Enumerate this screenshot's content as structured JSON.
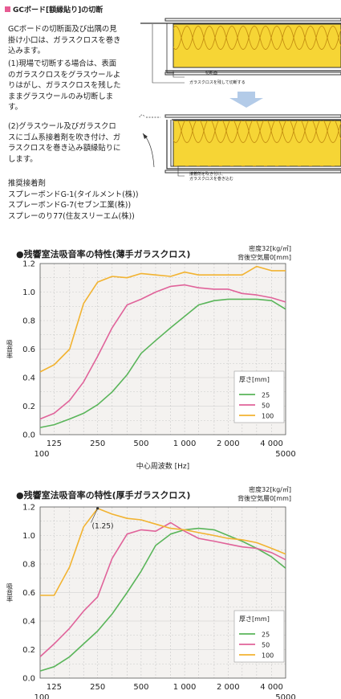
{
  "section": {
    "title": "GCボード[額縁貼り]の切断",
    "paragraph1": [
      "GCボードの切断面及び出隅の見",
      "掛け小口は、ガラスクロスを巻き",
      "込みます。"
    ],
    "paragraph2": [
      "(1)現場で切断する場合は、表面",
      "のガラスクロスをグラスウールよ",
      "りはがし、ガラスクロスを残した",
      "ままグラスウールのみ切断しま",
      "す。"
    ],
    "paragraph3": [
      "(2)グラスウール及びガラスクロ",
      "スにゴム系接着剤を吹き付け、ガ",
      "ラスクロスを巻き込み額縁貼りに",
      "します。"
    ],
    "adhesive_heading": "推奨接着剤",
    "adhesives": [
      "スプレーボンドG-1(タイルメント(株))",
      "スプレーボンドG-7(セブン工業(株))",
      "スプレーのり77(住友スリーエム(株))"
    ],
    "diagram_note1_a": "切断面",
    "diagram_note1_b": "ガラスクロスを残して切断する",
    "diagram_note2_a": "接着剤を吹き付け、",
    "diagram_note2_b": "ガラスクロスを巻き込む"
  },
  "colors": {
    "t25": "#5ab55a",
    "t50": "#e0639a",
    "t100": "#f2b331",
    "insulation": "#f6d535",
    "accent": "#e75b93",
    "arrow": "#b3cbe8"
  },
  "chart_data": [
    {
      "type": "line",
      "title": "●残響室法吸音率の特性(薄手ガラスクロス)",
      "note_line1": "密度32[kg/㎥]",
      "note_line2": "背後空気層0[mm]",
      "xlabel": "中心周波数 [Hz]",
      "ylabel": "吸音率",
      "x_scale": "log",
      "xlim": [
        100,
        5000
      ],
      "ylim": [
        0,
        1.2
      ],
      "grid": true,
      "yticks": [
        "0.0",
        "0.2",
        "0.4",
        "0.6",
        "0.8",
        "1.0",
        "1.2"
      ],
      "xticks_top": [
        "125",
        "250",
        "500",
        "1 000",
        "2 000",
        "4 000"
      ],
      "xticks_bottom": [
        "100",
        "5000"
      ],
      "x": [
        100,
        125,
        160,
        200,
        250,
        315,
        400,
        500,
        630,
        800,
        1000,
        1250,
        1600,
        2000,
        2500,
        3150,
        4000,
        5000
      ],
      "legend_title": "厚さ[mm]",
      "legend_position": "right",
      "series": [
        {
          "name": "25",
          "values": [
            0.05,
            0.07,
            0.11,
            0.15,
            0.21,
            0.3,
            0.42,
            0.57,
            0.66,
            0.75,
            0.83,
            0.91,
            0.94,
            0.95,
            0.95,
            0.95,
            0.94,
            0.88
          ]
        },
        {
          "name": "50",
          "values": [
            0.11,
            0.15,
            0.24,
            0.37,
            0.55,
            0.75,
            0.91,
            0.95,
            1.0,
            1.04,
            1.05,
            1.03,
            1.02,
            1.02,
            0.99,
            0.98,
            0.96,
            0.93
          ]
        },
        {
          "name": "100",
          "values": [
            0.44,
            0.49,
            0.6,
            0.92,
            1.07,
            1.11,
            1.1,
            1.13,
            1.12,
            1.11,
            1.14,
            1.12,
            1.12,
            1.12,
            1.12,
            1.18,
            1.15,
            1.15
          ]
        }
      ]
    },
    {
      "type": "line",
      "title": "●残響室法吸音率の特性(厚手ガラスクロス)",
      "note_line1": "密度32[kg/㎥]",
      "note_line2": "背後空気層0[mm]",
      "xlabel": "",
      "ylabel": "吸音率",
      "x_scale": "log",
      "xlim": [
        100,
        5000
      ],
      "ylim": [
        0,
        1.2
      ],
      "grid": true,
      "yticks": [
        "0.0",
        "0.2",
        "0.4",
        "0.6",
        "0.8",
        "1.0",
        "1.2"
      ],
      "xticks_top": [
        "125",
        "250",
        "500",
        "1 000",
        "2 000",
        "4 000"
      ],
      "xticks_bottom": [
        "100",
        "5000"
      ],
      "x": [
        100,
        125,
        160,
        200,
        250,
        315,
        400,
        500,
        630,
        800,
        1000,
        1250,
        1600,
        2000,
        2500,
        3150,
        4000,
        5000
      ],
      "legend_title": "厚さ[mm]",
      "legend_position": "right",
      "annotation": "(1.25)",
      "series": [
        {
          "name": "25",
          "values": [
            0.05,
            0.08,
            0.15,
            0.24,
            0.33,
            0.45,
            0.6,
            0.75,
            0.93,
            1.01,
            1.04,
            1.05,
            1.04,
            1.0,
            0.96,
            0.91,
            0.85,
            0.77
          ]
        },
        {
          "name": "50",
          "values": [
            0.15,
            0.24,
            0.35,
            0.47,
            0.57,
            0.84,
            1.01,
            1.04,
            1.03,
            1.09,
            1.03,
            0.98,
            0.96,
            0.94,
            0.92,
            0.91,
            0.88,
            0.83
          ]
        },
        {
          "name": "100",
          "values": [
            0.58,
            0.58,
            0.78,
            1.06,
            1.19,
            1.15,
            1.12,
            1.11,
            1.08,
            1.05,
            1.04,
            1.02,
            1.0,
            0.98,
            0.97,
            0.95,
            0.91,
            0.87
          ]
        }
      ]
    }
  ]
}
